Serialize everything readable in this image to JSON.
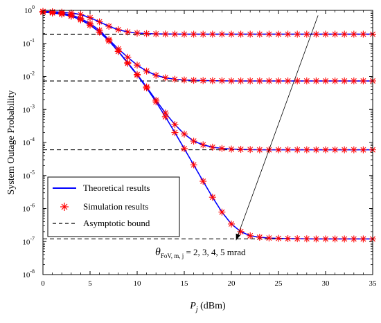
{
  "chart_data": {
    "type": "line",
    "xlabel": "P_j (dBm)",
    "xlabel_parts": {
      "main": "P",
      "sub": "j",
      "unit": " (dBm)"
    },
    "ylabel": "System Outage Probability",
    "xlim": [
      0,
      35
    ],
    "ylim": [
      1e-08,
      1
    ],
    "yscale": "log",
    "x_ticks": [
      0,
      5,
      10,
      15,
      20,
      25,
      30,
      35
    ],
    "y_ticks": [
      {
        "value": 1,
        "base": "10",
        "exp": "0"
      },
      {
        "value": 0.1,
        "base": "10",
        "exp": "-1"
      },
      {
        "value": 0.01,
        "base": "10",
        "exp": "-2"
      },
      {
        "value": 0.001,
        "base": "10",
        "exp": "-3"
      },
      {
        "value": 0.0001,
        "base": "10",
        "exp": "-4"
      },
      {
        "value": 1e-05,
        "base": "10",
        "exp": "-5"
      },
      {
        "value": 1e-06,
        "base": "10",
        "exp": "-6"
      },
      {
        "value": 1e-07,
        "base": "10",
        "exp": "-7"
      },
      {
        "value": 1e-08,
        "base": "10",
        "exp": "-8"
      }
    ],
    "grid": false,
    "legend_position": "bottom-left",
    "legend": [
      {
        "label": "Theoretical results",
        "style": "solid-line",
        "color": "#0000ff"
      },
      {
        "label": "Simulation results",
        "style": "asterisk-marker",
        "color": "#ff0000"
      },
      {
        "label": "Asymptotic bound",
        "style": "dashed-line",
        "color": "#000000"
      }
    ],
    "x": [
      0,
      1,
      2,
      3,
      4,
      5,
      6,
      7,
      8,
      9,
      10,
      11,
      12,
      13,
      14,
      15,
      16,
      17,
      18,
      19,
      20,
      21,
      22,
      23,
      24,
      25,
      26,
      27,
      28,
      29,
      30,
      31,
      32,
      33,
      34,
      35
    ],
    "series": [
      {
        "theta": 2,
        "asymptote": 0.19,
        "values": [
          0.93,
          0.91,
          0.88,
          0.83,
          0.75,
          0.6,
          0.45,
          0.33,
          0.26,
          0.222,
          0.205,
          0.198,
          0.194,
          0.192,
          0.191,
          0.19,
          0.19,
          0.19,
          0.19,
          0.19,
          0.19,
          0.19,
          0.19,
          0.19,
          0.19,
          0.19,
          0.19,
          0.19,
          0.19,
          0.19,
          0.19,
          0.19,
          0.19,
          0.19,
          0.19,
          0.19
        ]
      },
      {
        "theta": 3,
        "asymptote": 0.0073,
        "values": [
          0.9,
          0.87,
          0.82,
          0.73,
          0.57,
          0.4,
          0.25,
          0.13,
          0.068,
          0.038,
          0.022,
          0.0145,
          0.0108,
          0.0091,
          0.0082,
          0.0078,
          0.0076,
          0.0075,
          0.0074,
          0.0074,
          0.0073,
          0.0073,
          0.0073,
          0.0073,
          0.0073,
          0.0073,
          0.0073,
          0.0073,
          0.0073,
          0.0073,
          0.0073,
          0.0073,
          0.0073,
          0.0073,
          0.0073,
          0.0073
        ]
      },
      {
        "theta": 4,
        "asymptote": 6e-05,
        "values": [
          0.88,
          0.84,
          0.77,
          0.67,
          0.52,
          0.36,
          0.22,
          0.12,
          0.058,
          0.026,
          0.0115,
          0.0048,
          0.0019,
          0.00078,
          0.00035,
          0.00018,
          0.00011,
          8.5e-05,
          7.2e-05,
          6.6e-05,
          6.3e-05,
          6.2e-05,
          6.1e-05,
          6e-05,
          6e-05,
          6e-05,
          6e-05,
          6e-05,
          6e-05,
          6e-05,
          6e-05,
          6e-05,
          6e-05,
          6e-05,
          6e-05,
          6e-05
        ]
      },
      {
        "theta": 5,
        "asymptote": 1.2e-07,
        "values": [
          0.88,
          0.84,
          0.77,
          0.67,
          0.52,
          0.36,
          0.22,
          0.12,
          0.057,
          0.025,
          0.011,
          0.0045,
          0.0017,
          0.0006,
          0.0002,
          6.5e-05,
          2.1e-05,
          6.7e-06,
          2.2e-06,
          7.8e-07,
          3.4e-07,
          2e-07,
          1.5e-07,
          1.35e-07,
          1.28e-07,
          1.25e-07,
          1.23e-07,
          1.22e-07,
          1.21e-07,
          1.2e-07,
          1.2e-07,
          1.2e-07,
          1.2e-07,
          1.2e-07,
          1.2e-07,
          1.2e-07
        ]
      }
    ],
    "annotation": {
      "theta_symbol": "θ",
      "theta_sub": "FoV, m, j",
      "text": " = 2, 3, 4, 5 mrad",
      "arrow_from": [
        29.2,
        0.7
      ],
      "arrow_to": [
        20.5,
        1.1e-07
      ]
    }
  }
}
